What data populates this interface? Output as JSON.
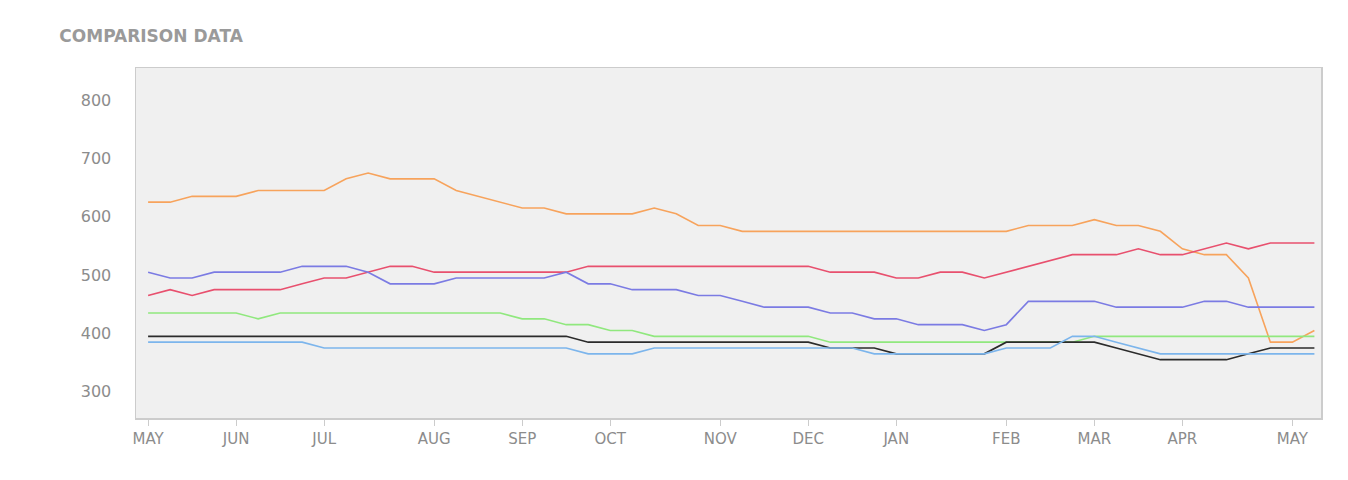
{
  "chart_data": {
    "type": "line",
    "title": "COMPARISON DATA",
    "categories": [
      "MAY",
      null,
      null,
      null,
      "JUN",
      null,
      null,
      null,
      "JUL",
      null,
      null,
      null,
      null,
      "AUG",
      null,
      null,
      null,
      "SEP",
      null,
      null,
      null,
      "OCT",
      null,
      null,
      null,
      null,
      "NOV",
      null,
      null,
      null,
      "DEC",
      null,
      null,
      null,
      "JAN",
      null,
      null,
      null,
      null,
      "FEB",
      null,
      null,
      null,
      "MAR",
      null,
      null,
      null,
      "APR",
      null,
      null,
      null,
      null,
      "MAY",
      null
    ],
    "series": [
      {
        "color": "#f7a35c",
        "values": [
          625,
          625,
          635,
          635,
          635,
          645,
          645,
          645,
          645,
          665,
          675,
          665,
          665,
          665,
          645,
          635,
          625,
          615,
          615,
          605,
          605,
          605,
          605,
          615,
          605,
          585,
          585,
          575,
          575,
          575,
          575,
          575,
          575,
          575,
          575,
          575,
          575,
          575,
          575,
          575,
          585,
          585,
          585,
          595,
          585,
          585,
          575,
          545,
          535,
          535,
          495,
          385,
          385,
          405
        ]
      },
      {
        "color": "#e8506e",
        "values": [
          465,
          475,
          465,
          475,
          475,
          475,
          475,
          485,
          495,
          495,
          505,
          515,
          515,
          505,
          505,
          505,
          505,
          505,
          505,
          505,
          515,
          515,
          515,
          515,
          515,
          515,
          515,
          515,
          515,
          515,
          515,
          505,
          505,
          505,
          495,
          495,
          505,
          505,
          495,
          505,
          515,
          525,
          535,
          535,
          535,
          545,
          535,
          535,
          545,
          555,
          545,
          555,
          555,
          555
        ]
      },
      {
        "color": "#7b7be3",
        "values": [
          505,
          495,
          495,
          505,
          505,
          505,
          505,
          515,
          515,
          515,
          505,
          485,
          485,
          485,
          495,
          495,
          495,
          495,
          495,
          505,
          485,
          485,
          475,
          475,
          475,
          465,
          465,
          455,
          445,
          445,
          445,
          435,
          435,
          425,
          425,
          415,
          415,
          415,
          405,
          415,
          455,
          455,
          455,
          455,
          445,
          445,
          445,
          445,
          455,
          455,
          445,
          445,
          445,
          445
        ]
      },
      {
        "color": "#90e87e",
        "values": [
          435,
          435,
          435,
          435,
          435,
          425,
          435,
          435,
          435,
          435,
          435,
          435,
          435,
          435,
          435,
          435,
          435,
          425,
          425,
          415,
          415,
          405,
          405,
          395,
          395,
          395,
          395,
          395,
          395,
          395,
          395,
          385,
          385,
          385,
          385,
          385,
          385,
          385,
          385,
          385,
          385,
          385,
          385,
          395,
          395,
          395,
          395,
          395,
          395,
          395,
          395,
          395,
          395,
          395
        ]
      },
      {
        "color": "#2b2b2b",
        "values": [
          395,
          395,
          395,
          395,
          395,
          395,
          395,
          395,
          395,
          395,
          395,
          395,
          395,
          395,
          395,
          395,
          395,
          395,
          395,
          395,
          385,
          385,
          385,
          385,
          385,
          385,
          385,
          385,
          385,
          385,
          385,
          375,
          375,
          375,
          365,
          365,
          365,
          365,
          365,
          385,
          385,
          385,
          385,
          385,
          375,
          365,
          355,
          355,
          355,
          355,
          365,
          375,
          375,
          375
        ]
      },
      {
        "color": "#7cb5ec",
        "values": [
          385,
          385,
          385,
          385,
          385,
          385,
          385,
          385,
          375,
          375,
          375,
          375,
          375,
          375,
          375,
          375,
          375,
          375,
          375,
          375,
          365,
          365,
          365,
          375,
          375,
          375,
          375,
          375,
          375,
          375,
          375,
          375,
          375,
          365,
          365,
          365,
          365,
          365,
          365,
          375,
          375,
          375,
          395,
          395,
          385,
          375,
          365,
          365,
          365,
          365,
          365,
          365,
          365,
          365
        ]
      }
    ],
    "ylim": [
      255,
      855
    ],
    "yticks": [
      300,
      400,
      500,
      600,
      700,
      800
    ],
    "grid": false
  }
}
